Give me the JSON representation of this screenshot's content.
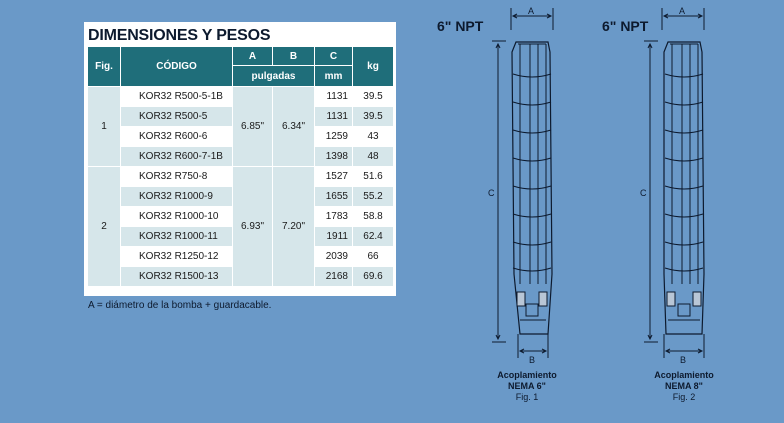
{
  "title": "DIMENSIONES Y PESOS",
  "table": {
    "headers": {
      "fig": "Fig.",
      "codigo": "CÓDIGO",
      "a": "A",
      "b": "B",
      "c": "C",
      "kg": "kg",
      "pulgadas": "pulgadas",
      "mm": "mm"
    },
    "groups": [
      {
        "fig": "1",
        "a": "6.85\"",
        "b": "6.34\"",
        "rows": [
          {
            "code": "KOR32 R500-5-1B",
            "c": "1131",
            "kg": "39.5"
          },
          {
            "code": "KOR32 R500-5",
            "c": "1131",
            "kg": "39.5"
          },
          {
            "code": "KOR32 R600-6",
            "c": "1259",
            "kg": "43"
          },
          {
            "code": "KOR32 R600-7-1B",
            "c": "1398",
            "kg": "48"
          }
        ]
      },
      {
        "fig": "2",
        "a": "6.93\"",
        "b": "7.20\"",
        "rows": [
          {
            "code": "KOR32 R750-8",
            "c": "1527",
            "kg": "51.6"
          },
          {
            "code": "KOR32 R1000-9",
            "c": "1655",
            "kg": "55.2"
          },
          {
            "code": "KOR32 R1000-10",
            "c": "1783",
            "kg": "58.8"
          },
          {
            "code": "KOR32 R1000-11",
            "c": "1911",
            "kg": "62.4"
          },
          {
            "code": "KOR32 R1250-12",
            "c": "2039",
            "kg": "66"
          },
          {
            "code": "KOR32 R1500-13",
            "c": "2168",
            "kg": "69.6"
          }
        ]
      }
    ]
  },
  "note": "A = diámetro de la bomba + guardacable.",
  "figures": [
    {
      "npt": "6\" NPT",
      "dim_a": "A",
      "dim_b": "B",
      "dim_c": "C",
      "coupling": "Acoplamiento",
      "nema": "NEMA 6\"",
      "label": "Fig. 1"
    },
    {
      "npt": "6\" NPT",
      "dim_a": "A",
      "dim_b": "B",
      "dim_c": "C",
      "coupling": "Acoplamiento",
      "nema": "NEMA 8\"",
      "label": "Fig. 2"
    }
  ]
}
